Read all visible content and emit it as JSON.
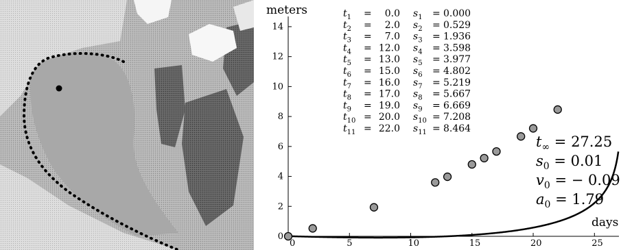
{
  "photo": {
    "description_icon": "landslide-photo"
  },
  "chart_data": {
    "type": "scatter",
    "xlabel": "days",
    "ylabel": "meters",
    "xlim": [
      0,
      27
    ],
    "ylim": [
      0,
      14.5
    ],
    "xticks": [
      0,
      5,
      10,
      15,
      20,
      25
    ],
    "yticks": [
      0,
      2,
      4,
      6,
      8,
      10,
      12,
      14
    ],
    "points": {
      "t": [
        0.0,
        2.0,
        7.0,
        12.0,
        13.0,
        15.0,
        16.0,
        17.0,
        19.0,
        20.0,
        22.0
      ],
      "s": [
        0.0,
        0.529,
        1.936,
        3.598,
        3.977,
        4.802,
        5.219,
        5.667,
        6.669,
        7.208,
        8.464
      ]
    },
    "table": [
      {
        "t_label": "t",
        "t_sub": "1",
        "t_val": "0.0",
        "s_label": "s",
        "s_sub": "1",
        "s_val": "0.000"
      },
      {
        "t_label": "t",
        "t_sub": "2",
        "t_val": "2.0",
        "s_label": "s",
        "s_sub": "2",
        "s_val": "0.529"
      },
      {
        "t_label": "t",
        "t_sub": "3",
        "t_val": "7.0",
        "s_label": "s",
        "s_sub": "3",
        "s_val": "1.936"
      },
      {
        "t_label": "t",
        "t_sub": "4",
        "t_val": "12.0",
        "s_label": "s",
        "s_sub": "4",
        "s_val": "3.598"
      },
      {
        "t_label": "t",
        "t_sub": "5",
        "t_val": "13.0",
        "s_label": "s",
        "s_sub": "5",
        "s_val": "3.977"
      },
      {
        "t_label": "t",
        "t_sub": "6",
        "t_val": "15.0",
        "s_label": "s",
        "s_sub": "6",
        "s_val": "4.802"
      },
      {
        "t_label": "t",
        "t_sub": "7",
        "t_val": "16.0",
        "s_label": "s",
        "s_sub": "7",
        "s_val": "5.219"
      },
      {
        "t_label": "t",
        "t_sub": "8",
        "t_val": "17.0",
        "s_label": "s",
        "s_sub": "8",
        "s_val": "5.667"
      },
      {
        "t_label": "t",
        "t_sub": "9",
        "t_val": "19.0",
        "s_label": "s",
        "s_sub": "9",
        "s_val": "6.669"
      },
      {
        "t_label": "t",
        "t_sub": "10",
        "t_val": "20.0",
        "s_label": "s",
        "s_sub": "10",
        "s_val": "7.208"
      },
      {
        "t_label": "t",
        "t_sub": "11",
        "t_val": "22.0",
        "s_label": "s",
        "s_sub": "11",
        "s_val": "8.464"
      }
    ],
    "parameters": [
      {
        "symbol": "t",
        "sub": "∞",
        "text": " = 27.25",
        "value": 27.25
      },
      {
        "symbol": "s",
        "sub": "0",
        "text": " = 0.01",
        "value": 0.01
      },
      {
        "symbol": "v",
        "sub": "0",
        "text": " = − 0.09",
        "value": -0.09
      },
      {
        "symbol": "a",
        "sub": "0",
        "text": " = 1.79",
        "value": 1.79
      }
    ],
    "fit_curve": {
      "model": "s = s0 + v0*t + a0*ln(t_inf/(t_inf - t))"
    },
    "colors": {
      "marker_fill": "#9a9a9a",
      "curve": "#000000"
    }
  }
}
